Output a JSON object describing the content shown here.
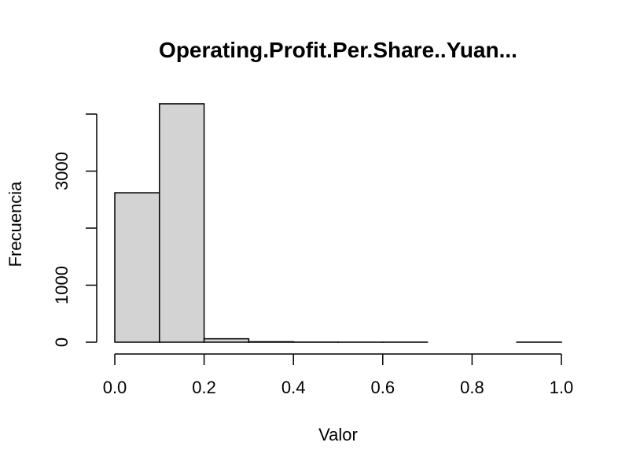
{
  "chart_data": {
    "type": "bar",
    "title": "Operating.Profit.Per.Share..Yuan...",
    "xlabel": "Valor",
    "ylabel": "Frecuencia",
    "bins": [
      {
        "from": 0.0,
        "to": 0.1,
        "count": 2620
      },
      {
        "from": 0.1,
        "to": 0.2,
        "count": 4180
      },
      {
        "from": 0.2,
        "to": 0.3,
        "count": 60
      },
      {
        "from": 0.3,
        "to": 0.4,
        "count": 8
      },
      {
        "from": 0.4,
        "to": 0.5,
        "count": 2
      },
      {
        "from": 0.5,
        "to": 0.6,
        "count": 1
      },
      {
        "from": 0.6,
        "to": 0.7,
        "count": 1
      },
      {
        "from": 0.7,
        "to": 0.8,
        "count": 0
      },
      {
        "from": 0.8,
        "to": 0.9,
        "count": 0
      },
      {
        "from": 0.9,
        "to": 1.0,
        "count": 1
      }
    ],
    "xlim": [
      0,
      1
    ],
    "ylim": [
      0,
      4000
    ],
    "x_ticks": [
      0.0,
      0.2,
      0.4,
      0.6,
      0.8,
      1.0
    ],
    "x_tick_labels": [
      "0.0",
      "0.2",
      "0.4",
      "0.6",
      "0.8",
      "1.0"
    ],
    "y_ticks": [
      0,
      1000,
      2000,
      3000,
      4000
    ],
    "y_tick_labels": [
      "0",
      "1000",
      "",
      "3000",
      ""
    ],
    "bar_color": "#d3d3d3",
    "grid": false,
    "legend": "none"
  }
}
